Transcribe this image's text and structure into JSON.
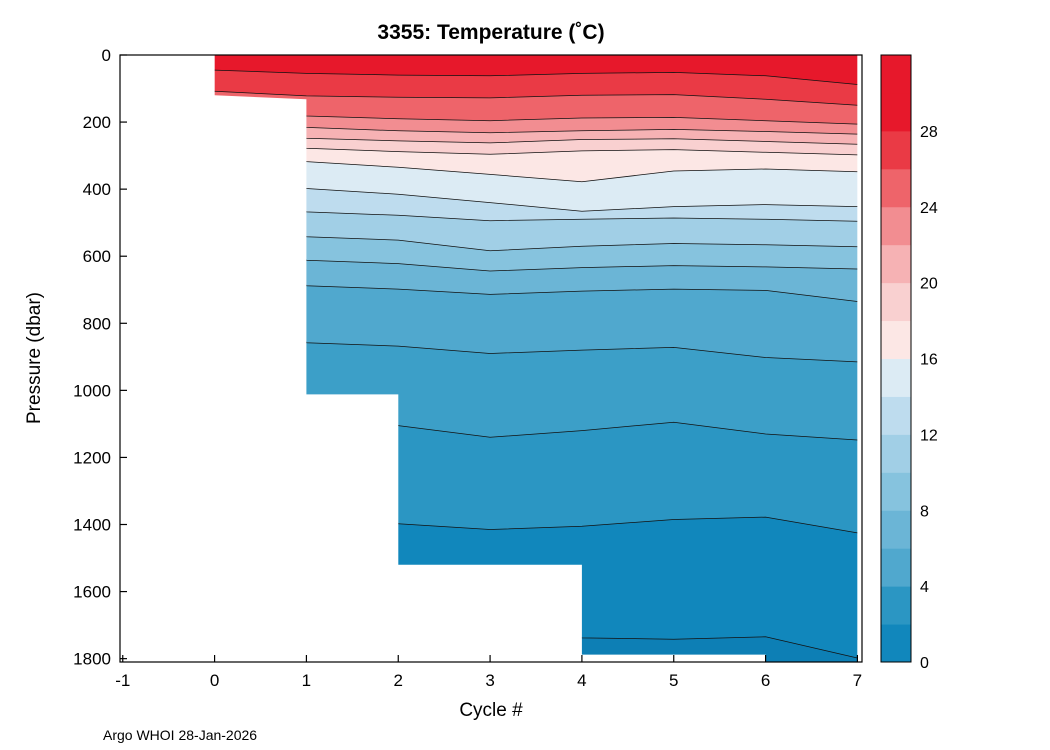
{
  "footer": "Argo WHOI 28-Jan-2026",
  "chart_data": {
    "type": "filled_contour",
    "title": "3355:  Temperature (˚C)",
    "xlabel": "Cycle #",
    "ylabel": "Pressure (dbar)",
    "xlim": [
      -1.03,
      7.05
    ],
    "ylim": [
      0,
      1810
    ],
    "x_ticks": [
      -1,
      0,
      1,
      2,
      3,
      4,
      5,
      6,
      7
    ],
    "y_ticks": [
      0,
      200,
      400,
      600,
      800,
      1000,
      1200,
      1400,
      1600,
      1800
    ],
    "cycles": [
      0,
      1,
      2,
      3,
      4,
      5,
      6,
      7
    ],
    "extent": [
      [
        0,
        0
      ],
      [
        7,
        0
      ],
      [
        7,
        1810
      ],
      [
        6,
        1810
      ],
      [
        6,
        1788
      ],
      [
        4,
        1788
      ],
      [
        4,
        1520
      ],
      [
        2,
        1520
      ],
      [
        2,
        1012
      ],
      [
        1,
        1012
      ],
      [
        1,
        132
      ],
      [
        0,
        120
      ]
    ],
    "levels": [
      {
        "value": 28,
        "band_color": "#e7182b",
        "depths": [
          45,
          55,
          60,
          62,
          55,
          52,
          62,
          88
        ]
      },
      {
        "value": 26,
        "band_color": "#ea3a45",
        "depths": [
          108,
          122,
          126,
          128,
          120,
          118,
          132,
          150
        ]
      },
      {
        "value": 24,
        "band_color": "#ee646a",
        "depths": [
          128,
          182,
          190,
          196,
          188,
          186,
          196,
          206
        ]
      },
      {
        "value": 22,
        "band_color": "#f28d91",
        "depths": [
          140,
          216,
          226,
          232,
          226,
          222,
          228,
          236
        ]
      },
      {
        "value": 20,
        "band_color": "#f6b2b4",
        "depths": [
          150,
          248,
          256,
          262,
          252,
          250,
          258,
          266
        ]
      },
      {
        "value": 18,
        "band_color": "#f9d0d0",
        "depths": [
          160,
          278,
          288,
          296,
          286,
          282,
          290,
          298
        ]
      },
      {
        "value": 16,
        "band_color": "#fce7e5",
        "depths": [
          170,
          318,
          335,
          356,
          378,
          346,
          340,
          348
        ]
      },
      {
        "value": 14,
        "band_color": "#dcebf4",
        "depths": [
          180,
          398,
          415,
          440,
          466,
          452,
          446,
          452
        ]
      },
      {
        "value": 12,
        "band_color": "#bedcee",
        "depths": [
          190,
          468,
          478,
          494,
          490,
          486,
          490,
          496
        ]
      },
      {
        "value": 10,
        "band_color": "#a1cfe6",
        "depths": [
          200,
          542,
          552,
          584,
          570,
          562,
          566,
          572
        ]
      },
      {
        "value": 8,
        "band_color": "#86c3de",
        "depths": [
          210,
          612,
          622,
          644,
          634,
          628,
          632,
          638
        ]
      },
      {
        "value": 6,
        "band_color": "#6bb5d6",
        "depths": [
          220,
          688,
          698,
          714,
          704,
          698,
          702,
          735
        ]
      },
      {
        "value": 4,
        "band_color": "#50a8ce",
        "depths": [
          230,
          858,
          868,
          890,
          880,
          872,
          902,
          915
        ]
      },
      {
        "value": 3,
        "band_color": "#3c9fc8",
        "depths": [
          240,
          1088,
          1105,
          1140,
          1120,
          1095,
          1130,
          1148
        ]
      },
      {
        "value": 2,
        "band_color": "#2b96c3",
        "depths": [
          250,
          1388,
          1398,
          1415,
          1405,
          1385,
          1378,
          1425
        ]
      },
      {
        "value": 1.5,
        "band_color": "#1187bc",
        "depths": [
          260,
          1700,
          1705,
          1725,
          1738,
          1742,
          1735,
          1798
        ]
      }
    ],
    "deep_color": "#0d7fb5",
    "line_color": "#111111",
    "colorbar": {
      "min": 0,
      "max": 32,
      "tick_values": [
        0,
        4,
        8,
        12,
        16,
        20,
        24,
        28
      ],
      "colors": [
        "#1187bc",
        "#2b96c3",
        "#50a8ce",
        "#6bb5d6",
        "#86c3de",
        "#a1cfe6",
        "#bedcee",
        "#dcebf4",
        "#fce7e5",
        "#f9d0d0",
        "#f6b2b4",
        "#f28d91",
        "#ee646a",
        "#ea3a45",
        "#e7182b",
        "#e7182b"
      ]
    }
  }
}
